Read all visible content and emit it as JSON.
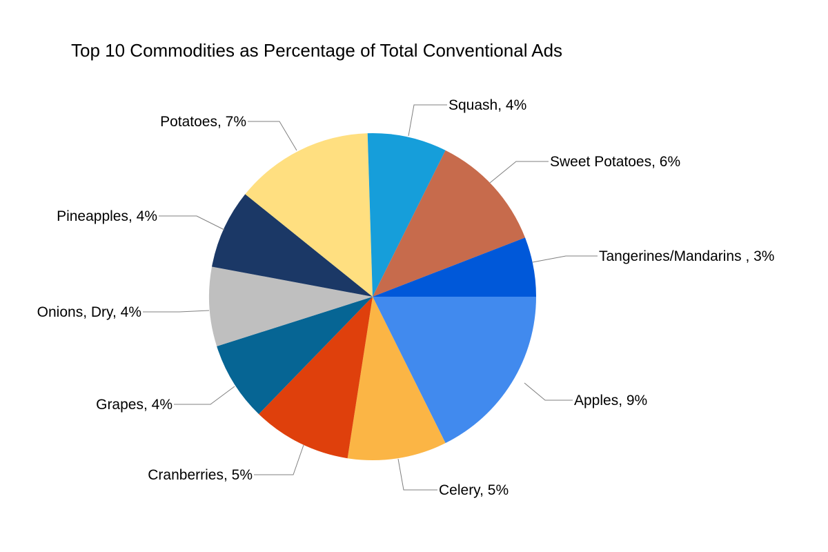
{
  "chart_data": {
    "type": "pie",
    "title": "Top 10 Commodities as Percentage of Total Conventional Ads",
    "slices": [
      {
        "label": "Apples, 9%",
        "name": "Apples",
        "value": 9,
        "color": "#418AEE"
      },
      {
        "label": "Celery, 5%",
        "name": "Celery",
        "value": 5,
        "color": "#FBB545"
      },
      {
        "label": "Cranberries, 5%",
        "name": "Cranberries",
        "value": 5,
        "color": "#DF400C"
      },
      {
        "label": "Grapes, 4%",
        "name": "Grapes",
        "value": 4,
        "color": "#066594"
      },
      {
        "label": "Onions, Dry, 4%",
        "name": "Onions, Dry",
        "value": 4,
        "color": "#BFBFBF"
      },
      {
        "label": "Pineapples, 4%",
        "name": "Pineapples",
        "value": 4,
        "color": "#1B3866"
      },
      {
        "label": "Potatoes, 7%",
        "name": "Potatoes",
        "value": 7,
        "color": "#FFDF80"
      },
      {
        "label": "Squash, 4%",
        "name": "Squash",
        "value": 4,
        "color": "#169EDA"
      },
      {
        "label": "Sweet Potatoes, 6%",
        "name": "Sweet Potatoes",
        "value": 6,
        "color": "#C76B4C"
      },
      {
        "label": "Tangerines/Mandarins , 3%",
        "name": "Tangerines/Mandarins",
        "value": 3,
        "color": "#0058D9"
      }
    ],
    "legend": "none",
    "start_angle": "3 o'clock, clockwise"
  }
}
